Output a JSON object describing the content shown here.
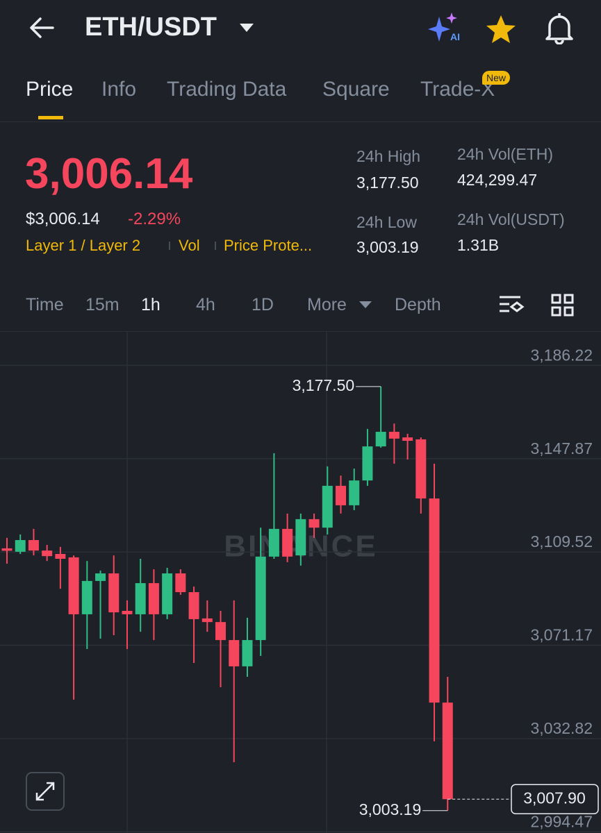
{
  "header": {
    "pair": "ETH/USDT",
    "ai_badge": "AI"
  },
  "tabs": [
    "Price",
    "Info",
    "Trading Data",
    "Square",
    "Trade-X"
  ],
  "tab_badge": "New",
  "summary": {
    "price": "3,006.14",
    "price_usd": "$3,006.14",
    "change": "-2.29%",
    "tags": [
      "Layer 1 / Layer 2",
      "Vol",
      "Price Prote..."
    ],
    "stats": [
      {
        "label": "24h High",
        "value": "3,177.50"
      },
      {
        "label": "24h Vol(ETH)",
        "value": "424,299.47"
      },
      {
        "label": "24h Low",
        "value": "3,003.19"
      },
      {
        "label": "24h Vol(USDT)",
        "value": "1.31B"
      }
    ]
  },
  "intervals": [
    "Time",
    "15m",
    "1h",
    "4h",
    "1D",
    "More",
    "Depth"
  ],
  "chart_data": {
    "type": "candlestick",
    "watermark": "BINANCE",
    "up_color": "#2ebd85",
    "down_color": "#f6465d",
    "open": [
      3111.0,
      3109.6,
      3114.4,
      3110.1,
      3108.7,
      3107.3,
      3083.9,
      3097.6,
      3100.7,
      3085.3,
      3083.9,
      3096.7,
      3083.9,
      3100.7,
      3093.0,
      3082.2,
      3080.7,
      3073.3,
      3062.5,
      3073.3,
      3107.6,
      3119.0,
      3108.1,
      3123.0,
      3119.5,
      3136.7,
      3128.7,
      3138.9,
      3152.9,
      3158.9,
      3156.6,
      3155.8,
      3131.5,
      3047.6
    ],
    "high": [
      3115.3,
      3116.7,
      3119.0,
      3112.4,
      3111.6,
      3108.1,
      3105.8,
      3101.9,
      3108.1,
      3089.6,
      3106.7,
      3102.4,
      3103.0,
      3102.4,
      3095.3,
      3089.6,
      3085.3,
      3089.6,
      3082.5,
      3119.5,
      3150.1,
      3125.3,
      3125.3,
      3125.3,
      3144.7,
      3140.9,
      3143.8,
      3160.1,
      3177.5,
      3162.3,
      3158.1,
      3156.6,
      3145.8,
      3058.2
    ],
    "low": [
      3104.7,
      3108.7,
      3108.1,
      3105.8,
      3094.4,
      3048.8,
      3069.6,
      3073.9,
      3075.3,
      3069.6,
      3076.7,
      3073.3,
      3081.9,
      3091.9,
      3063.9,
      3076.7,
      3053.9,
      3023.1,
      3058.2,
      3066.8,
      3106.7,
      3105.3,
      3103.9,
      3115.3,
      3116.7,
      3125.3,
      3126.7,
      3136.7,
      3152.4,
      3145.8,
      3147.5,
      3125.3,
      3031.7,
      3003.19
    ],
    "close": [
      3110.0,
      3114.4,
      3110.1,
      3107.8,
      3106.7,
      3083.9,
      3097.6,
      3100.7,
      3084.7,
      3083.9,
      3096.7,
      3083.9,
      3100.7,
      3093.0,
      3081.9,
      3080.7,
      3073.3,
      3062.5,
      3073.3,
      3107.6,
      3119.0,
      3107.6,
      3123.0,
      3119.5,
      3136.7,
      3128.7,
      3138.9,
      3152.9,
      3158.9,
      3156.1,
      3155.2,
      3131.5,
      3047.6,
      3007.9
    ],
    "ylim": [
      2994,
      3200
    ],
    "yticks": [
      {
        "value": 3186.22,
        "label": "3,186.22"
      },
      {
        "value": 3147.87,
        "label": "3,147.87"
      },
      {
        "value": 3109.52,
        "label": "3,109.52"
      },
      {
        "value": 3071.17,
        "label": "3,071.17"
      },
      {
        "value": 3032.82,
        "label": "3,032.82"
      },
      {
        "value": 2994.47,
        "label": "2,994.47"
      }
    ],
    "grid": true,
    "annotations": [
      {
        "value": 3177.5,
        "label": "3,177.50"
      },
      {
        "value": 3003.19,
        "label": "3,003.19"
      }
    ],
    "last_price": {
      "value": 3007.9,
      "label": "3,007.90"
    }
  }
}
